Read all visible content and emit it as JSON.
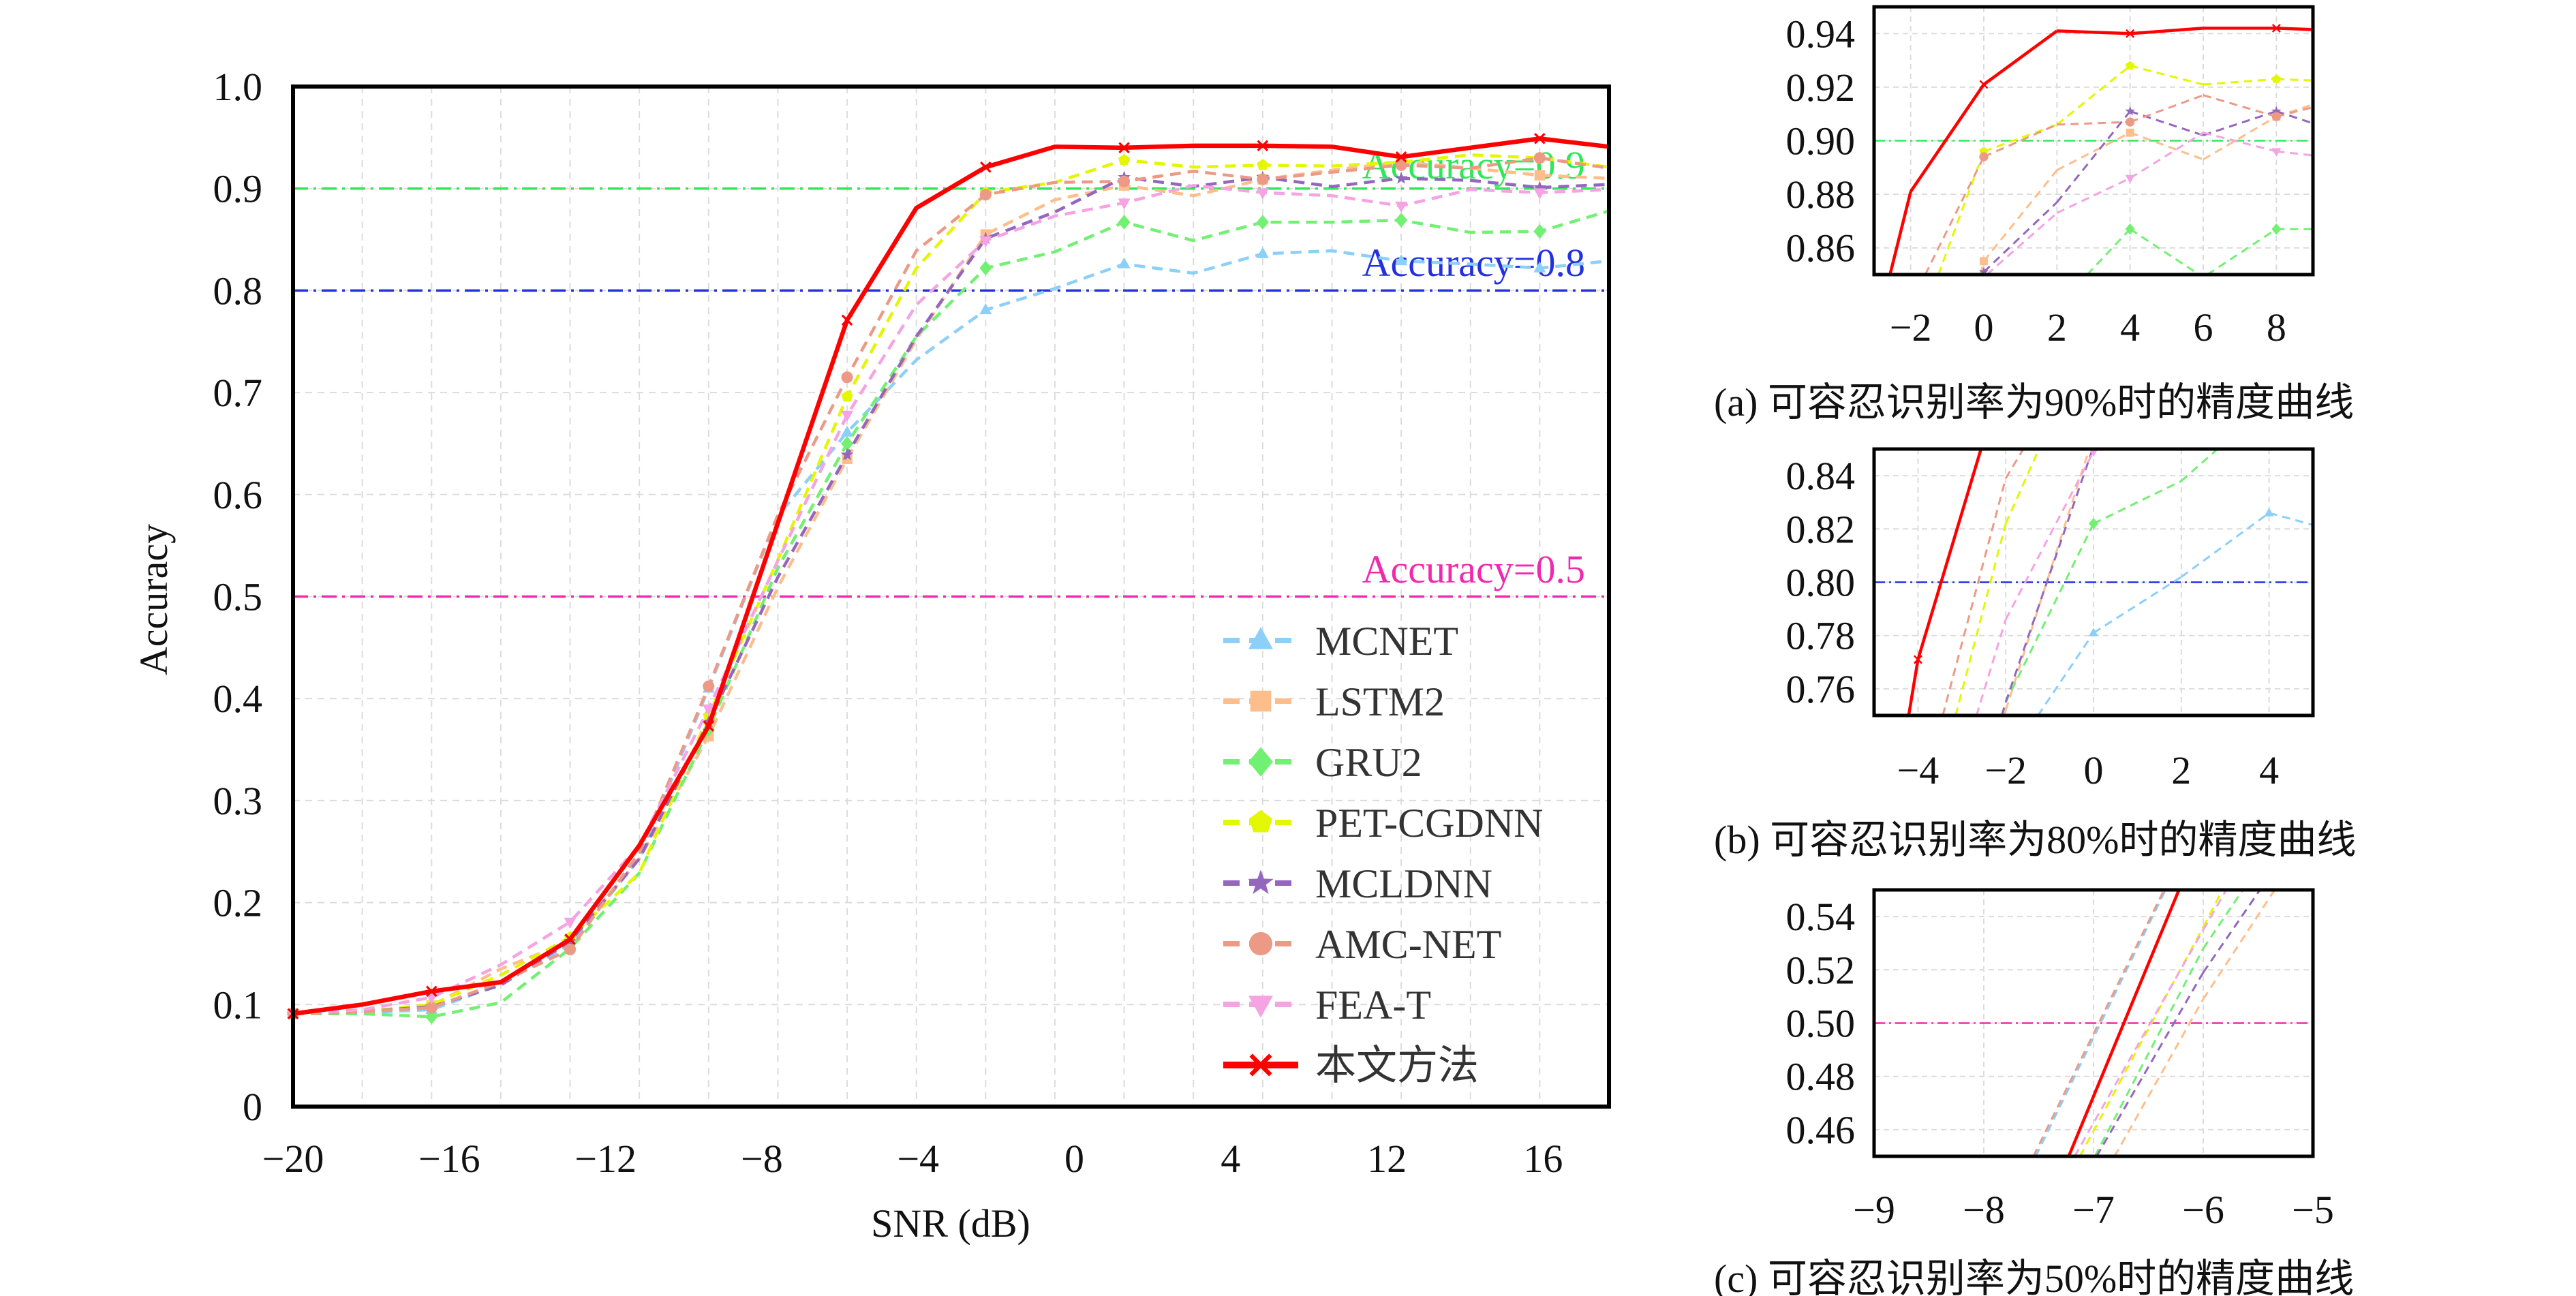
{
  "chart_data": {
    "type": "line",
    "main": {
      "xlabel": "SNR (dB)",
      "ylabel": "Accuracy",
      "xlim": [
        -20,
        18
      ],
      "ylim": [
        0,
        1.0
      ],
      "x_tick_labels": [
        "−20",
        "−16",
        "−12",
        "−8",
        "−4",
        "0",
        "4",
        "12",
        "16"
      ],
      "y_ticks": [
        0,
        0.1,
        0.2,
        0.3,
        0.4,
        0.5,
        0.6,
        0.7,
        0.8,
        0.9,
        1.0
      ],
      "y_tick_labels": [
        "0",
        "0.1",
        "0.2",
        "0.3",
        "0.4",
        "0.5",
        "0.6",
        "0.7",
        "0.8",
        "0.9",
        "1.0"
      ],
      "grid": true,
      "legend_position": "bottom-right",
      "reference_lines": [
        {
          "y": 0.9,
          "label": "Accuracy=0.9",
          "color": "#2EE85A"
        },
        {
          "y": 0.8,
          "label": "Accuracy=0.8",
          "color": "#2330E0"
        },
        {
          "y": 0.5,
          "label": "Accuracy=0.5",
          "color": "#F02AAE"
        }
      ]
    },
    "x": [
      -20,
      -18,
      -16,
      -14,
      -12,
      -10,
      -8,
      -6,
      -4,
      -2,
      0,
      2,
      4,
      6,
      8,
      10,
      12,
      14,
      16,
      18
    ],
    "series": [
      {
        "name": "MCNET",
        "color": "#8CCFF8",
        "marker": "triangle-up",
        "style": "dashed",
        "values": [
          0.091,
          0.092,
          0.095,
          0.12,
          0.159,
          0.243,
          0.41,
          0.579,
          0.661,
          0.732,
          0.781,
          0.802,
          0.826,
          0.817,
          0.836,
          0.839,
          0.829,
          0.826,
          0.822,
          0.829
        ]
      },
      {
        "name": "LSTM2",
        "color": "#FDBE8C",
        "marker": "square",
        "style": "dashed",
        "values": [
          0.091,
          0.093,
          0.099,
          0.135,
          0.162,
          0.243,
          0.363,
          0.509,
          0.635,
          0.752,
          0.855,
          0.889,
          0.903,
          0.893,
          0.909,
          0.918,
          0.926,
          0.92,
          0.913,
          0.91
        ]
      },
      {
        "name": "GRU2",
        "color": "#72F072",
        "marker": "diamond",
        "style": "dashed",
        "values": [
          0.091,
          0.091,
          0.088,
          0.102,
          0.155,
          0.229,
          0.37,
          0.528,
          0.65,
          0.755,
          0.822,
          0.838,
          0.867,
          0.849,
          0.867,
          0.867,
          0.869,
          0.857,
          0.858,
          0.878
        ]
      },
      {
        "name": "PET-CGDNN",
        "color": "#E2F700",
        "marker": "pentagon",
        "style": "dashed",
        "values": [
          0.091,
          0.093,
          0.1,
          0.129,
          0.166,
          0.229,
          0.383,
          0.536,
          0.696,
          0.822,
          0.896,
          0.906,
          0.928,
          0.921,
          0.923,
          0.922,
          0.926,
          0.933,
          0.93,
          0.921
        ]
      },
      {
        "name": "MCLDNN",
        "color": "#9467BD",
        "marker": "star",
        "style": "dashed",
        "values": [
          0.091,
          0.093,
          0.098,
          0.119,
          0.162,
          0.243,
          0.377,
          0.519,
          0.639,
          0.755,
          0.851,
          0.877,
          0.911,
          0.902,
          0.911,
          0.902,
          0.91,
          0.908,
          0.901,
          0.904
        ]
      },
      {
        "name": "AMC-NET",
        "color": "#EC9A86",
        "marker": "circle",
        "style": "dashed",
        "values": [
          0.091,
          0.093,
          0.097,
          0.122,
          0.154,
          0.249,
          0.412,
          0.58,
          0.715,
          0.839,
          0.894,
          0.906,
          0.907,
          0.917,
          0.909,
          0.916,
          0.923,
          0.92,
          0.93,
          0.92
        ]
      },
      {
        "name": "FEA-T",
        "color": "#F5A3E2",
        "marker": "triangle-down",
        "style": "dashed",
        "values": [
          0.091,
          0.095,
          0.107,
          0.139,
          0.181,
          0.256,
          0.39,
          0.535,
          0.678,
          0.786,
          0.849,
          0.873,
          0.886,
          0.903,
          0.896,
          0.893,
          0.883,
          0.899,
          0.896,
          0.899
        ]
      },
      {
        "name": "本文方法",
        "color": "#FF0000",
        "marker": "x",
        "style": "solid",
        "values": [
          0.091,
          0.1,
          0.113,
          0.122,
          0.164,
          0.256,
          0.373,
          0.572,
          0.771,
          0.881,
          0.921,
          0.941,
          0.94,
          0.942,
          0.942,
          0.941,
          0.931,
          0.94,
          0.949,
          0.941
        ]
      }
    ],
    "insets": [
      {
        "caption": "(a) 可容忍识别率为90%时的精度曲线",
        "xlim": [
          -3,
          9
        ],
        "ylim": [
          0.85,
          0.95
        ],
        "x_ticks": [
          -2,
          0,
          2,
          4,
          6,
          8
        ],
        "x_tick_labels": [
          "−2",
          "0",
          "2",
          "4",
          "6",
          "8"
        ],
        "y_ticks": [
          0.86,
          0.88,
          0.9,
          0.92,
          0.94
        ],
        "y_tick_labels": [
          "0.86",
          "0.88",
          "0.90",
          "0.92",
          "0.94"
        ],
        "reference_y": 0.9,
        "reference_color": "#2EE85A"
      },
      {
        "caption": "(b) 可容忍识别率为80%时的精度曲线",
        "xlim": [
          -5,
          5
        ],
        "ylim": [
          0.75,
          0.85
        ],
        "x_ticks": [
          -4,
          -2,
          0,
          2,
          4
        ],
        "x_tick_labels": [
          "−4",
          "−2",
          "0",
          "2",
          "4"
        ],
        "y_ticks": [
          0.76,
          0.78,
          0.8,
          0.82,
          0.84
        ],
        "y_tick_labels": [
          "0.76",
          "0.78",
          "0.80",
          "0.82",
          "0.84"
        ],
        "reference_y": 0.8,
        "reference_color": "#2330E0"
      },
      {
        "caption": "(c) 可容忍识别率为50%时的精度曲线",
        "xlim": [
          -9,
          -5
        ],
        "ylim": [
          0.45,
          0.55
        ],
        "x_ticks": [
          -9,
          -8,
          -7,
          -6,
          -5
        ],
        "x_tick_labels": [
          "−9",
          "−8",
          "−7",
          "−6",
          "−5"
        ],
        "y_ticks": [
          0.46,
          0.48,
          0.5,
          0.52,
          0.54
        ],
        "y_tick_labels": [
          "0.46",
          "0.48",
          "0.50",
          "0.52",
          "0.54"
        ],
        "reference_y": 0.5,
        "reference_color": "#F02AAE"
      }
    ]
  }
}
